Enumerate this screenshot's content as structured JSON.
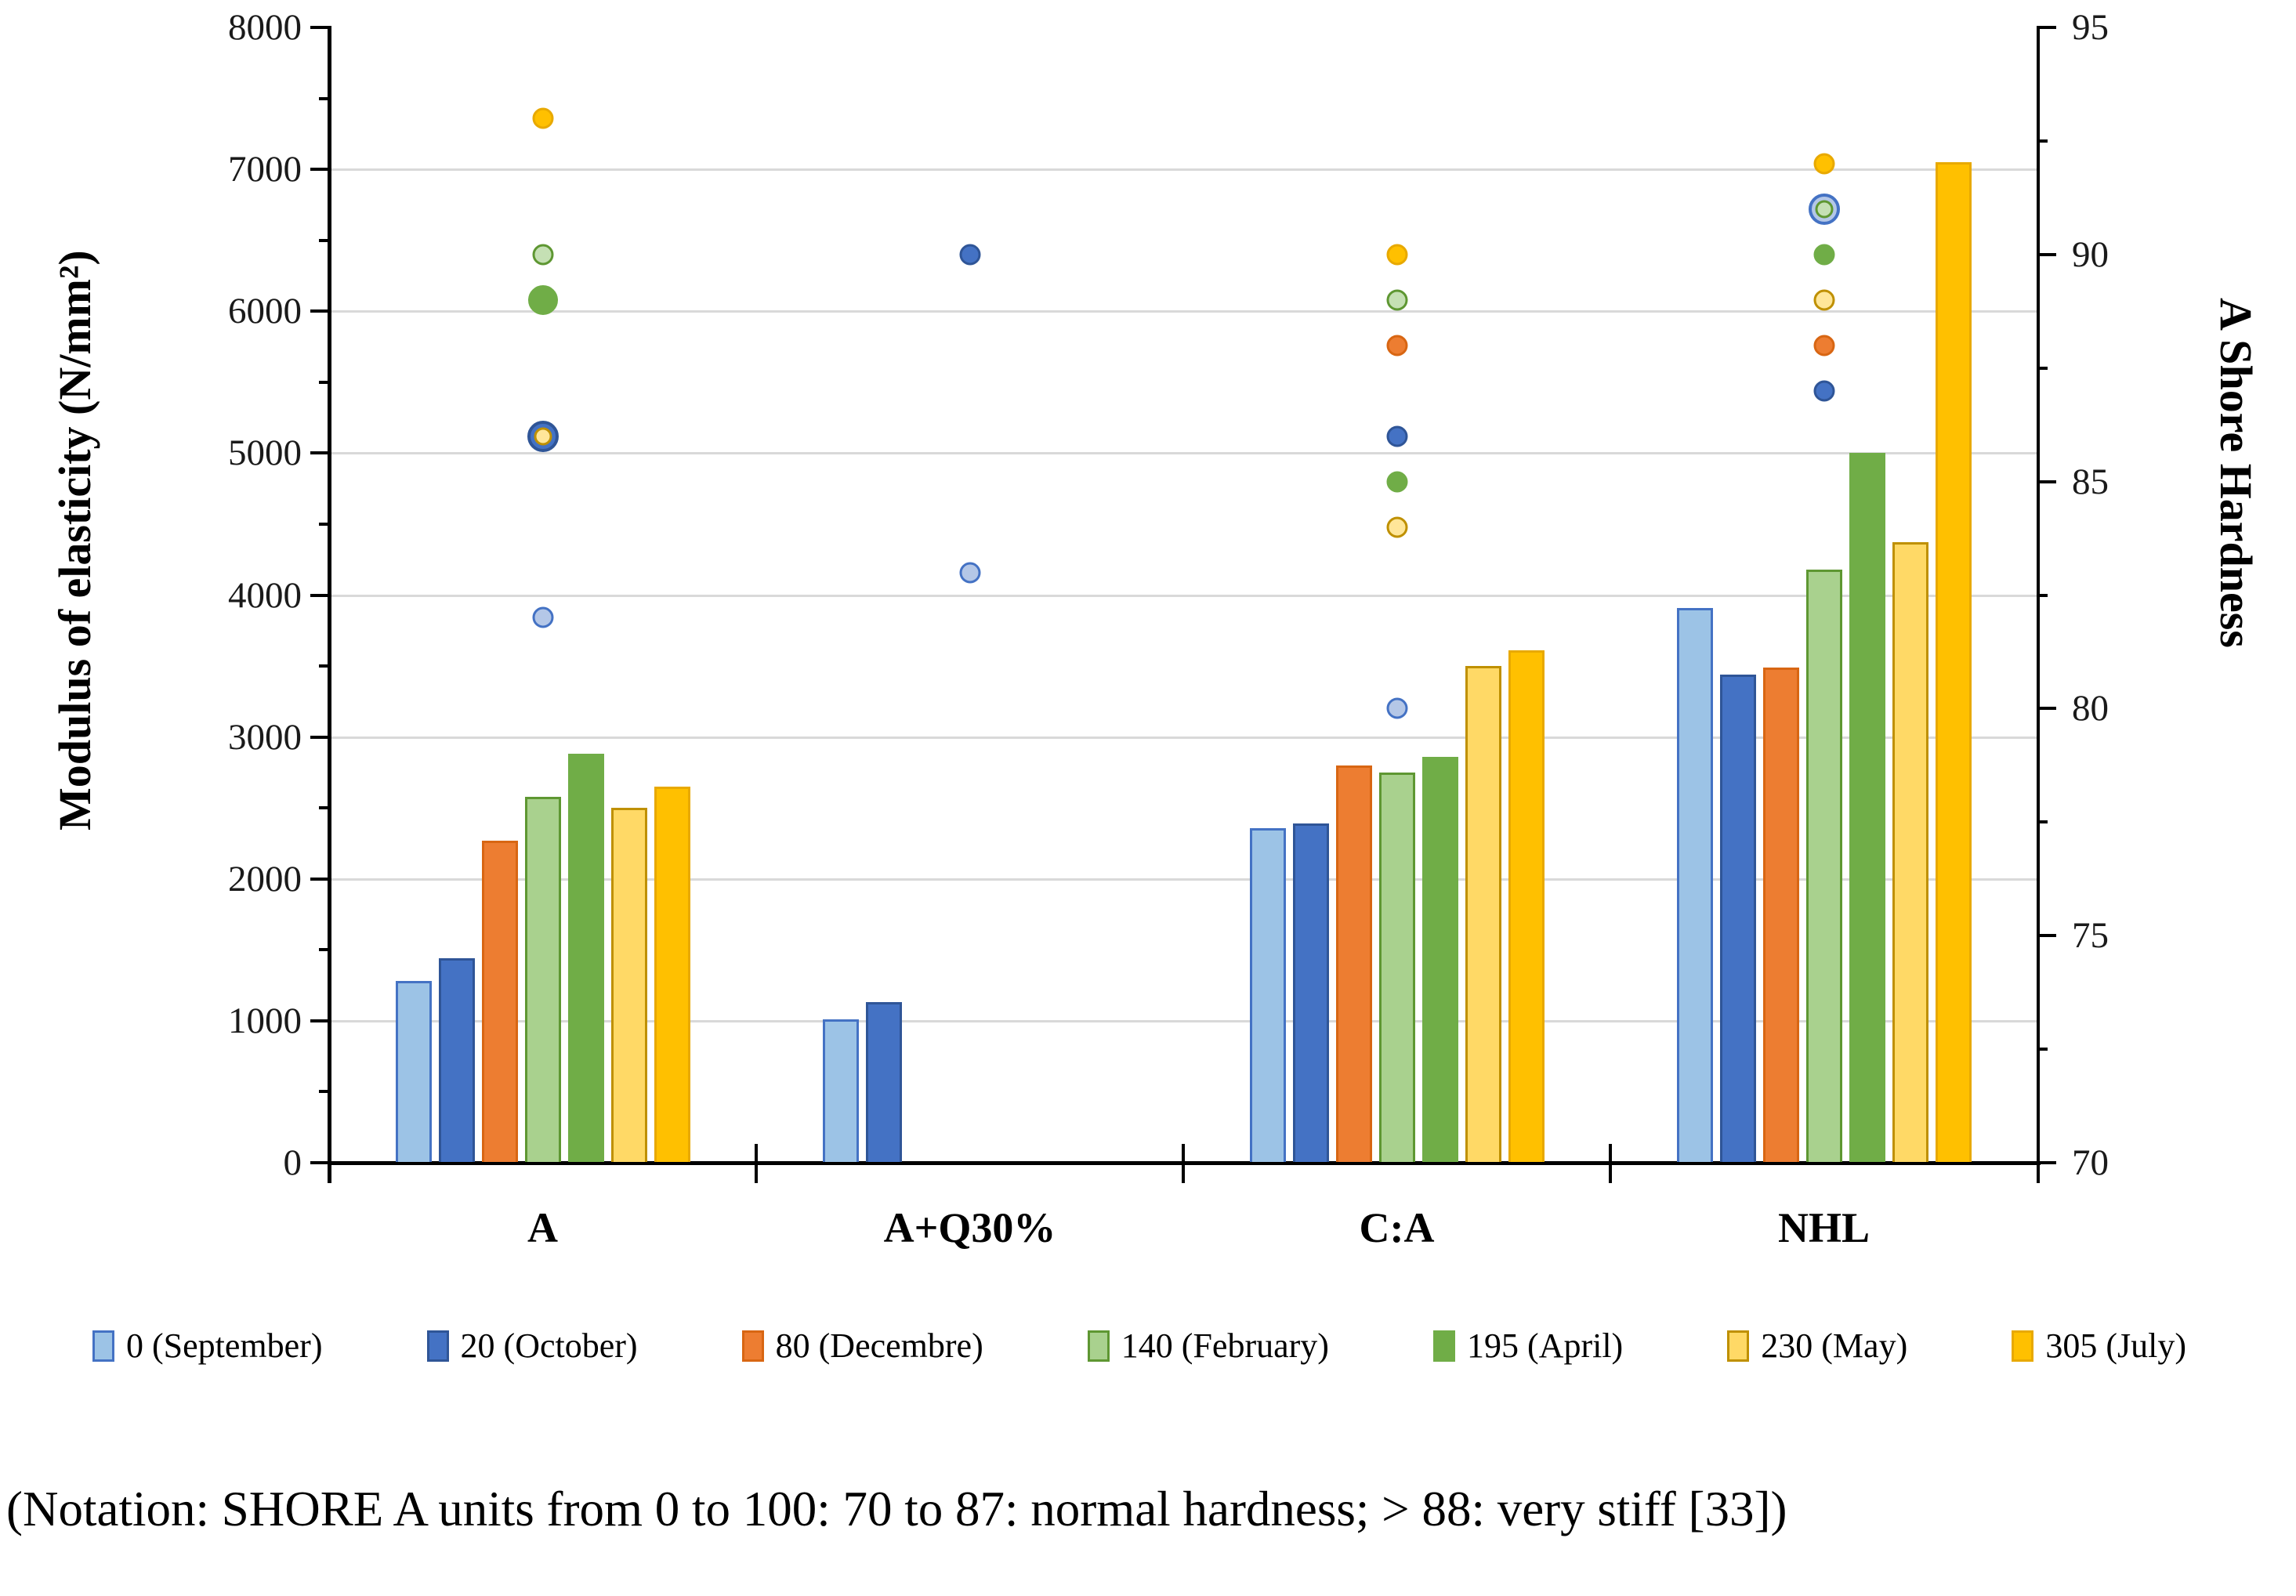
{
  "caption": "(Notation: SHORE A units from 0 to 100: 70 to 87: normal hardness; > 88: very stiff [33])",
  "chart_data": {
    "type": "combo-bar-scatter",
    "title": "",
    "categories": [
      "A",
      "A+Q30%",
      "C:A",
      "NHL"
    ],
    "axes": {
      "left": {
        "title": "Modulus of elasticity (N/mm²)",
        "min": 0,
        "max": 8000,
        "major_step": 1000,
        "minor_step": 500,
        "tick_labels": [
          "0",
          "1000",
          "2000",
          "3000",
          "4000",
          "5000",
          "6000",
          "7000",
          "8000"
        ]
      },
      "right": {
        "title": "A Shore Hardness",
        "min": 70,
        "max": 95,
        "major_step": 5,
        "minor_step": 2.5,
        "tick_labels": [
          "70",
          "75",
          "80",
          "85",
          "90",
          "95"
        ]
      }
    },
    "grid": "horizontal gridlines at every 1000 N/mm²",
    "legend_position": "bottom",
    "series": [
      {
        "name": "0 (September)",
        "fill": "#9CC3E6",
        "border": "#4472C4",
        "dot_fill": "#B4C7E7",
        "bars_modulus": [
          1280,
          1010,
          2360,
          3910
        ],
        "dots_shore": [
          82,
          83,
          80,
          91
        ]
      },
      {
        "name": "20 (October)",
        "fill": "#4472C4",
        "border": "#2F5597",
        "dot_fill": "#4472C4",
        "bars_modulus": [
          1440,
          1130,
          2390,
          3440
        ],
        "dots_shore": [
          86,
          90,
          86,
          87
        ]
      },
      {
        "name": "80 (Decembre)",
        "fill": "#ED7D31",
        "border": "#D86613",
        "dot_fill": "#ED7D31",
        "bars_modulus": [
          2270,
          null,
          2800,
          3490
        ],
        "dots_shore": [
          null,
          null,
          88,
          88
        ]
      },
      {
        "name": "140 (February)",
        "fill": "#A9D18E",
        "border": "#5E9732",
        "dot_fill": "#C5E0B4",
        "bars_modulus": [
          2580,
          null,
          2750,
          4180
        ],
        "dots_shore": [
          90,
          null,
          89,
          91
        ]
      },
      {
        "name": "195 (April)",
        "fill": "#70AD47",
        "border": "#70AD47",
        "dot_fill": "#70AD47",
        "bars_modulus": [
          2880,
          null,
          2860,
          5000
        ],
        "dots_shore": [
          89,
          null,
          85,
          90
        ]
      },
      {
        "name": "230 (May)",
        "fill": "#FFD966",
        "border": "#BF9000",
        "dot_fill": "#FFE699",
        "bars_modulus": [
          2500,
          null,
          3500,
          4370
        ],
        "dots_shore": [
          86,
          null,
          84,
          89
        ]
      },
      {
        "name": "305 (July)",
        "fill": "#FFC000",
        "border": "#E8A900",
        "dot_fill": "#FFC000",
        "bars_modulus": [
          2650,
          null,
          3610,
          7050
        ],
        "dots_shore": [
          93,
          null,
          90,
          92
        ]
      }
    ],
    "marker_notes": {
      "overlaps": [
        {
          "category": "A",
          "outer": "20 (October)",
          "inner": "230 (May)",
          "shore": 86
        },
        {
          "category": "NHL",
          "outer": "0 (September)",
          "inner": "140 (February)",
          "shore": 91
        }
      ],
      "large_marker": {
        "category": "A",
        "series": "195 (April)",
        "shore": 89
      }
    }
  }
}
